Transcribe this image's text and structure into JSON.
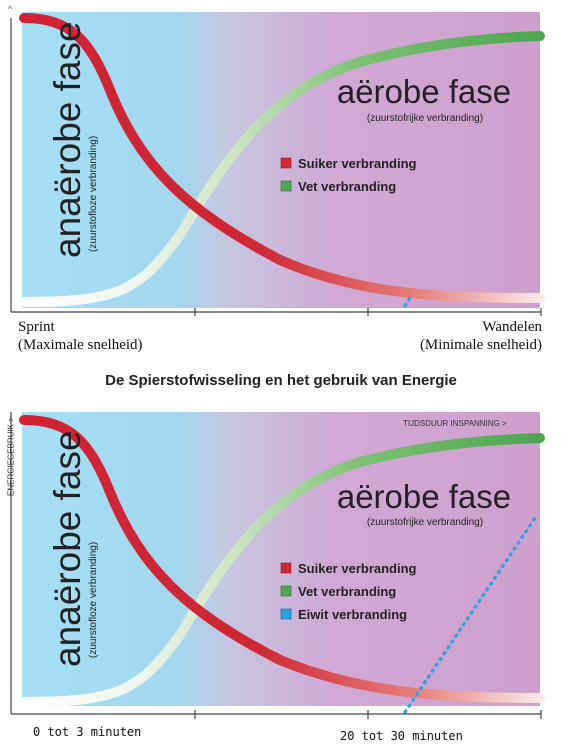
{
  "chart_data": [
    {
      "type": "line",
      "title": "",
      "y_axis_marker": "^",
      "phases": [
        {
          "name": "anaërobe fase",
          "subtitle": "(zuurstofloze verbranding)"
        },
        {
          "name": "aërobe fase",
          "subtitle": "(zuurstofrijke verbranding)"
        }
      ],
      "series": [
        {
          "name": "Suiker verbranding",
          "color": "#d42a35"
        },
        {
          "name": "Vet verbranding",
          "color": "#4ea852"
        }
      ],
      "x_labels": {
        "left": [
          "Sprint",
          "(Maximale snelheid)"
        ],
        "right": [
          "Wandelen",
          "(Minimale snelheid)"
        ]
      }
    },
    {
      "type": "line",
      "title": "De Spierstofwisseling en het gebruik van Energie",
      "ylabel": "ENERGIEGEBRUIK >",
      "xlabel": "TIJDSDUUR INSPANNING >",
      "phases": [
        {
          "name": "anaërobe fase",
          "subtitle": "(zuurstofloze verbranding)"
        },
        {
          "name": "aërobe fase",
          "subtitle": "(zuurstofrijke verbranding)"
        }
      ],
      "series": [
        {
          "name": "Suiker verbranding",
          "color": "#d42a35"
        },
        {
          "name": "Vet verbranding",
          "color": "#4ea852"
        },
        {
          "name": "Eiwit verbranding",
          "color": "#2aa3e6"
        }
      ],
      "x_labels": {
        "left": "0 tot 3 minuten",
        "right": "20 tot 30 minuten"
      }
    }
  ]
}
